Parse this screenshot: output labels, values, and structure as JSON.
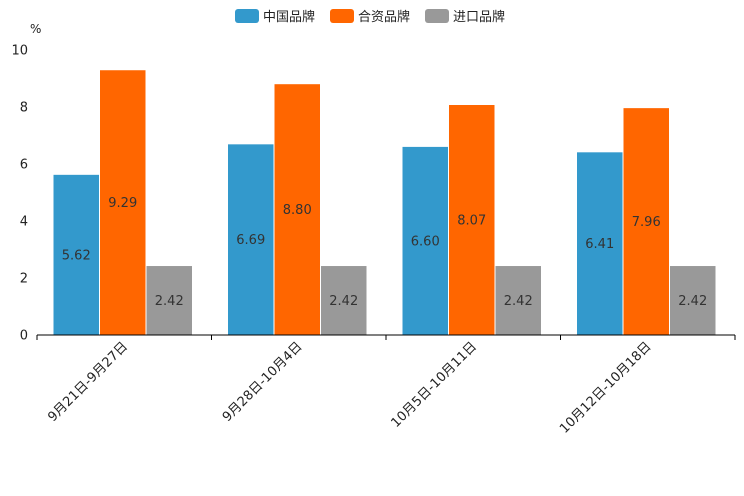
{
  "chart_data": {
    "type": "bar",
    "unit": "%",
    "ylim": [
      0,
      10
    ],
    "yticks": [
      0,
      2,
      4,
      6,
      8,
      10
    ],
    "categories": [
      "9月21日-9月27日",
      "9月28日-10月4日",
      "10月5日-10月11日",
      "10月12日-10月18日"
    ],
    "series": [
      {
        "name": "中国品牌",
        "color": "#3399cc",
        "values": [
          5.62,
          6.69,
          6.6,
          6.41
        ],
        "labels": [
          "5.62",
          "6.69",
          "6.60",
          "6.41"
        ]
      },
      {
        "name": "合资品牌",
        "color": "#ff6600",
        "values": [
          9.29,
          8.8,
          8.07,
          7.96
        ],
        "labels": [
          "9.29",
          "8.80",
          "8.07",
          "7.96"
        ]
      },
      {
        "name": "进口品牌",
        "color": "#999999",
        "values": [
          2.42,
          2.42,
          2.42,
          2.42
        ],
        "labels": [
          "2.42",
          "2.42",
          "2.42",
          "2.42"
        ]
      }
    ],
    "legend_position": "top-center"
  }
}
